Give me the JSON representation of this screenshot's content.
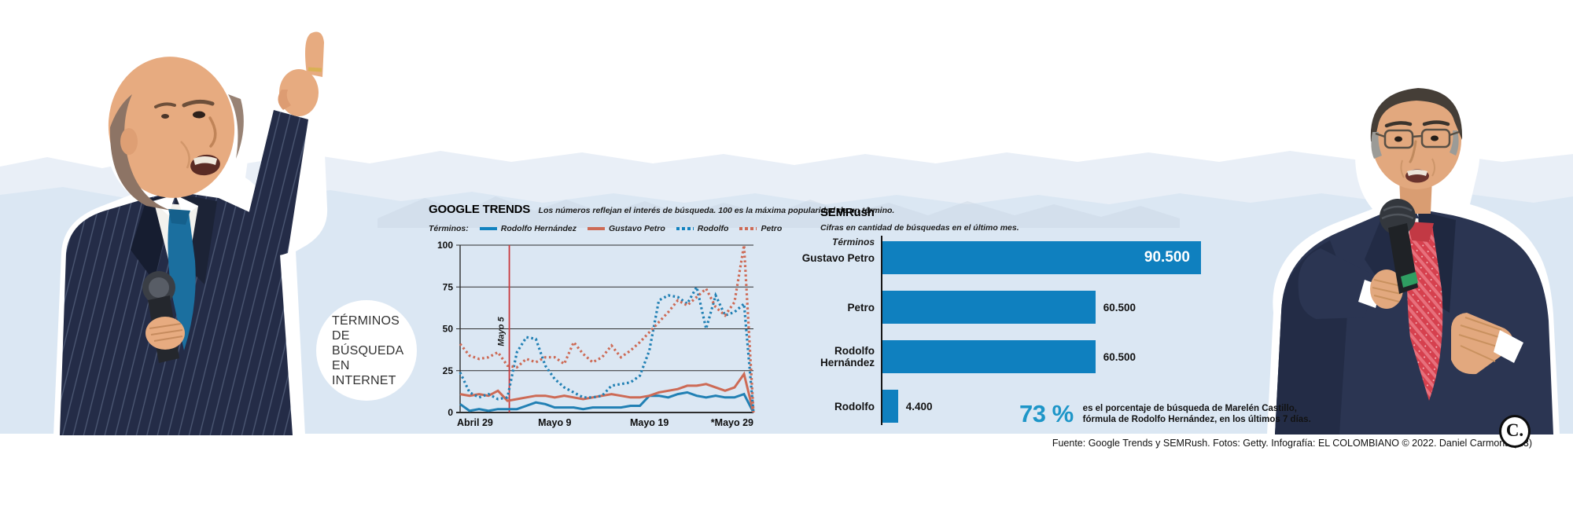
{
  "badge": {
    "lines": [
      "TÉRMINOS DE",
      "BÚSQUEDA",
      "EN INTERNET"
    ]
  },
  "google_trends": {
    "title": "GOOGLE TRENDS",
    "subtitle": "Los números reflejan el interés de búsqueda. 100 es la máxima popularidad de un término.",
    "legend_label": "Términos:",
    "legend": [
      {
        "label": "Rodolfo Hernández",
        "swatch": "solid-blue"
      },
      {
        "label": "Gustavo Petro",
        "swatch": "solid-coral"
      },
      {
        "label": "Rodolfo",
        "swatch": "dotted-blue"
      },
      {
        "label": "Petro",
        "swatch": "dotted-coral"
      }
    ]
  },
  "semrush": {
    "title": "SEMRush",
    "subtitle": "Cifras en cantidad de búsquedas en el último mes.",
    "axis_label": "Términos"
  },
  "stat": {
    "value": "73 %",
    "line1": "es el porcentaje de búsqueda de Marelén Castillo,",
    "line2": "fórmula de Rodolfo Hernández, en los últimos 7 días."
  },
  "footer": {
    "source": "Fuente: Google Trends y SEMRush. Fotos: Getty. Infografía: EL COLOMBIANO © 2022. Daniel Carmona (N3)",
    "logo": "C."
  },
  "colors": {
    "band": "#dbe7f3",
    "band_light": "#e9eff7",
    "blue": "#1282bf",
    "coral": "#cd6a55",
    "bar_blue": "#0f80bf",
    "accent_blue": "#1e96c8",
    "red_line": "#c9383d",
    "ink": "#111111"
  },
  "chart_data": [
    {
      "type": "line",
      "title": "GOOGLE TRENDS",
      "xlabel": "",
      "ylabel": "",
      "x_range": [
        0,
        31
      ],
      "ylim": [
        0,
        100
      ],
      "y_ticks": [
        0,
        25,
        50,
        75,
        100
      ],
      "x_tick_labels": [
        "Abril 29",
        "Mayo 9",
        "Mayo 19",
        "*Mayo 29"
      ],
      "x_tick_positions": [
        0,
        10,
        20,
        30
      ],
      "annotation": {
        "label": "Mayo 5",
        "x": 5.2
      },
      "grid": true,
      "series": [
        {
          "name": "Rodolfo Hernández",
          "style": "solid",
          "color": "#2180b4",
          "values": [
            5,
            1,
            2,
            1,
            2,
            2,
            2,
            4,
            6,
            5,
            3,
            3,
            3,
            2,
            3,
            3,
            3,
            3,
            4,
            4,
            10,
            10,
            9,
            11,
            12,
            10,
            9,
            10,
            9,
            9,
            11,
            0
          ]
        },
        {
          "name": "Gustavo Petro",
          "style": "solid",
          "color": "#cd6a55",
          "values": [
            11,
            10,
            11,
            10,
            13,
            7,
            8,
            9,
            10,
            10,
            9,
            10,
            9,
            8,
            9,
            10,
            11,
            10,
            9,
            9,
            10,
            12,
            13,
            14,
            16,
            16,
            17,
            15,
            13,
            15,
            23,
            0
          ]
        },
        {
          "name": "Rodolfo",
          "style": "dotted",
          "color": "#2180b4",
          "values": [
            24,
            12,
            9,
            11,
            8,
            9,
            36,
            45,
            44,
            28,
            20,
            15,
            12,
            9,
            9,
            10,
            16,
            17,
            18,
            22,
            37,
            67,
            70,
            69,
            65,
            75,
            50,
            70,
            58,
            60,
            65,
            0
          ]
        },
        {
          "name": "Petro",
          "style": "dotted",
          "color": "#cd6a55",
          "values": [
            41,
            34,
            32,
            33,
            36,
            28,
            27,
            32,
            30,
            33,
            33,
            29,
            42,
            35,
            30,
            33,
            40,
            33,
            37,
            42,
            48,
            54,
            60,
            67,
            64,
            69,
            74,
            63,
            58,
            66,
            100,
            0
          ]
        }
      ]
    },
    {
      "type": "bar",
      "title": "SEMRush",
      "categories": [
        "Gustavo Petro",
        "Petro",
        "Rodolfo Hernández",
        "Rodolfo"
      ],
      "values": [
        90500,
        60500,
        60500,
        4400
      ],
      "value_labels": [
        "90.500",
        "60.500",
        "60.500",
        "4.400"
      ],
      "label_inside": [
        true,
        false,
        false,
        false
      ],
      "xlim": [
        0,
        90500
      ]
    }
  ]
}
